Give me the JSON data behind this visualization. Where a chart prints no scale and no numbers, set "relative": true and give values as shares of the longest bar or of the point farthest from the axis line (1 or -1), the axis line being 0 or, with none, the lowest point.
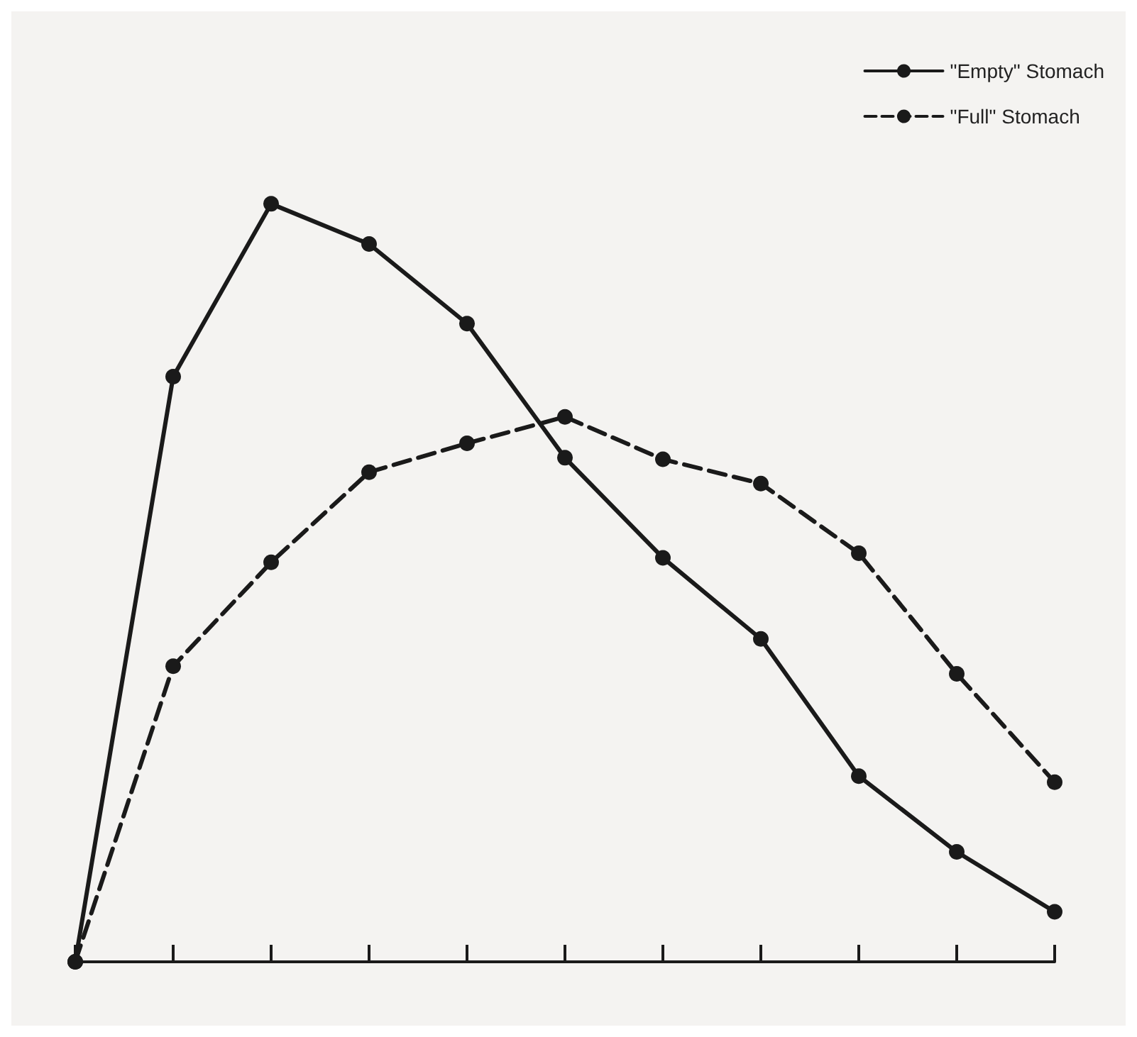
{
  "chart_data": {
    "type": "line",
    "relative": true,
    "categories": [
      null,
      null,
      null,
      null,
      null,
      null,
      null,
      null,
      null,
      null,
      null
    ],
    "series": [
      {
        "name": "\"Empty\" Stomach",
        "color": "#1a1a1a",
        "line_style": "solid",
        "values": [
          0,
          0.772,
          1,
          0.947,
          0.842,
          0.665,
          0.533,
          0.426,
          0.245,
          0.145,
          0.066
        ]
      },
      {
        "name": "\"Full\" Stomach",
        "color": "#1a1a1a",
        "line_style": "dashed",
        "values": [
          0,
          0.39,
          0.527,
          0.646,
          0.684,
          0.719,
          0.663,
          0.631,
          0.539,
          0.38,
          0.237
        ]
      }
    ],
    "marker": "circle",
    "legend": "top right",
    "grid": false
  }
}
